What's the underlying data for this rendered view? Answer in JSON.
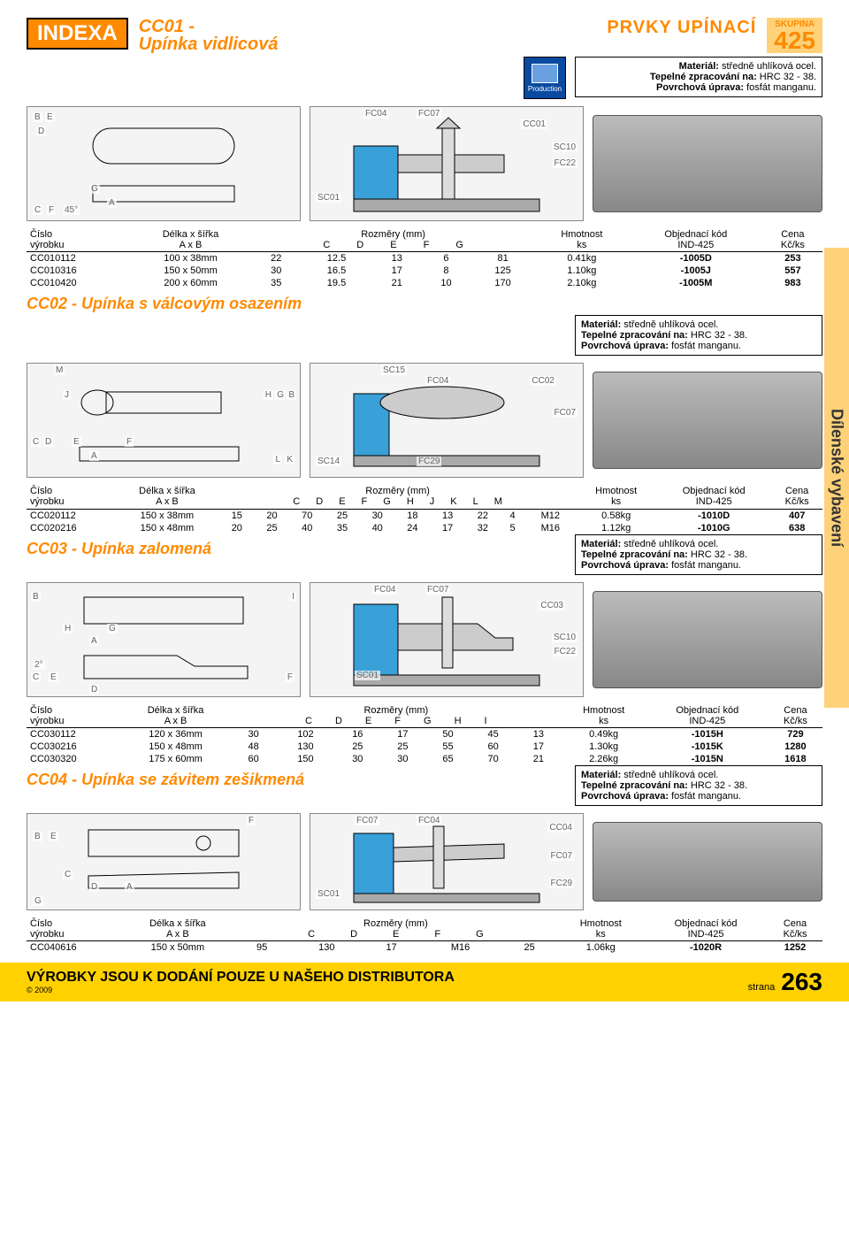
{
  "brand": "INDEXA",
  "header": {
    "prvky": "PRVKY UPÍNACÍ",
    "skupina_label": "SKUPINA",
    "skupina_num": "425"
  },
  "material_box": {
    "line1_label": "Materiál:",
    "line1_val": " středně uhlíková ocel.",
    "line2_label": "Tepelné zpracování na:",
    "line2_val": " HRC 32 - 38.",
    "line3_label": "Povrchová úprava:",
    "line3_val": " fosfát manganu."
  },
  "sidebar": "Dílenské vybavení",
  "footer": {
    "text": "VÝROBKY JSOU K DODÁNÍ POUZE U NAŠEHO DISTRIBUTORA",
    "copyright": "© 2009",
    "strana": "strana",
    "page": "263"
  },
  "col": {
    "cislo": "Číslo",
    "vyrobku": "výrobku",
    "delka": "Délka x šířka",
    "axb": "A x B",
    "rozmery": "Rozměry (mm)",
    "hmotnost": "Hmotnost",
    "ks": "ks",
    "objk": "Objednací kód",
    "ind": "IND-425",
    "cena": "Cena",
    "kcks": "Kč/ks"
  },
  "cc01": {
    "title": "CC01 -",
    "subtitle": "Upínka vidlicová",
    "cols": [
      "C",
      "D",
      "E",
      "F",
      "G"
    ],
    "rows": [
      {
        "id": "CC010112",
        "ab": "100 x 38mm",
        "v": [
          "22",
          "12.5",
          "13",
          "6",
          "81"
        ],
        "w": "0.41kg",
        "code": "-1005D",
        "price": "253"
      },
      {
        "id": "CC010316",
        "ab": "150 x 50mm",
        "v": [
          "30",
          "16.5",
          "17",
          "8",
          "125"
        ],
        "w": "1.10kg",
        "code": "-1005J",
        "price": "557"
      },
      {
        "id": "CC010420",
        "ab": "200 x 60mm",
        "v": [
          "35",
          "19.5",
          "21",
          "10",
          "170"
        ],
        "w": "2.10kg",
        "code": "-1005M",
        "price": "983"
      }
    ],
    "labels": [
      "FC04",
      "FC07",
      "CC01",
      "SC10",
      "FC22",
      "SC01",
      "B",
      "E",
      "D",
      "G",
      "A",
      "C",
      "F",
      "45°"
    ]
  },
  "cc02": {
    "title": "CC02 - Upínka s válcovým osazením",
    "cols": [
      "C",
      "D",
      "E",
      "F",
      "G",
      "H",
      "J",
      "K",
      "L",
      "M"
    ],
    "rows": [
      {
        "id": "CC020112",
        "ab": "150 x 38mm",
        "v": [
          "15",
          "20",
          "70",
          "25",
          "30",
          "18",
          "13",
          "22",
          "4",
          "M12"
        ],
        "w": "0.58kg",
        "code": "-1010D",
        "price": "407"
      },
      {
        "id": "CC020216",
        "ab": "150 x 48mm",
        "v": [
          "20",
          "25",
          "40",
          "35",
          "40",
          "24",
          "17",
          "32",
          "5",
          "M16"
        ],
        "w": "1.12kg",
        "code": "-1010G",
        "price": "638"
      }
    ],
    "labels": [
      "SC15",
      "FC04",
      "CC02",
      "FC07",
      "SC14",
      "FC29",
      "M",
      "J",
      "H",
      "G",
      "B",
      "C",
      "D",
      "E",
      "F",
      "A",
      "L",
      "K"
    ]
  },
  "cc03": {
    "title": "CC03 - Upínka zalomená",
    "cols": [
      "C",
      "D",
      "E",
      "F",
      "G",
      "H",
      "I"
    ],
    "rows": [
      {
        "id": "CC030112",
        "ab": "120 x 36mm",
        "v": [
          "30",
          "102",
          "16",
          "17",
          "50",
          "45",
          "13"
        ],
        "w": "0.49kg",
        "code": "-1015H",
        "price": "729"
      },
      {
        "id": "CC030216",
        "ab": "150 x 48mm",
        "v": [
          "48",
          "130",
          "25",
          "25",
          "55",
          "60",
          "17"
        ],
        "w": "1.30kg",
        "code": "-1015K",
        "price": "1280"
      },
      {
        "id": "CC030320",
        "ab": "175 x 60mm",
        "v": [
          "60",
          "150",
          "30",
          "30",
          "65",
          "70",
          "21"
        ],
        "w": "2.26kg",
        "code": "-1015N",
        "price": "1618"
      }
    ],
    "labels": [
      "FC04",
      "FC07",
      "CC03",
      "SC10",
      "FC22",
      "SC01",
      "B",
      "I",
      "H",
      "G",
      "A",
      "2°",
      "C",
      "E",
      "F",
      "D"
    ]
  },
  "cc04": {
    "title": "CC04 - Upínka se závitem zešikmená",
    "cols": [
      "C",
      "D",
      "E",
      "F",
      "G"
    ],
    "rows": [
      {
        "id": "CC040616",
        "ab": "150 x 50mm",
        "v": [
          "95",
          "130",
          "17",
          "M16",
          "25"
        ],
        "w": "1.06kg",
        "code": "-1020R",
        "price": "1252"
      }
    ],
    "labels": [
      "F",
      "FC07",
      "FC04",
      "CC04",
      "FC29",
      "SC01",
      "B",
      "E",
      "C",
      "D",
      "A",
      "G"
    ]
  },
  "production_label": "Production"
}
